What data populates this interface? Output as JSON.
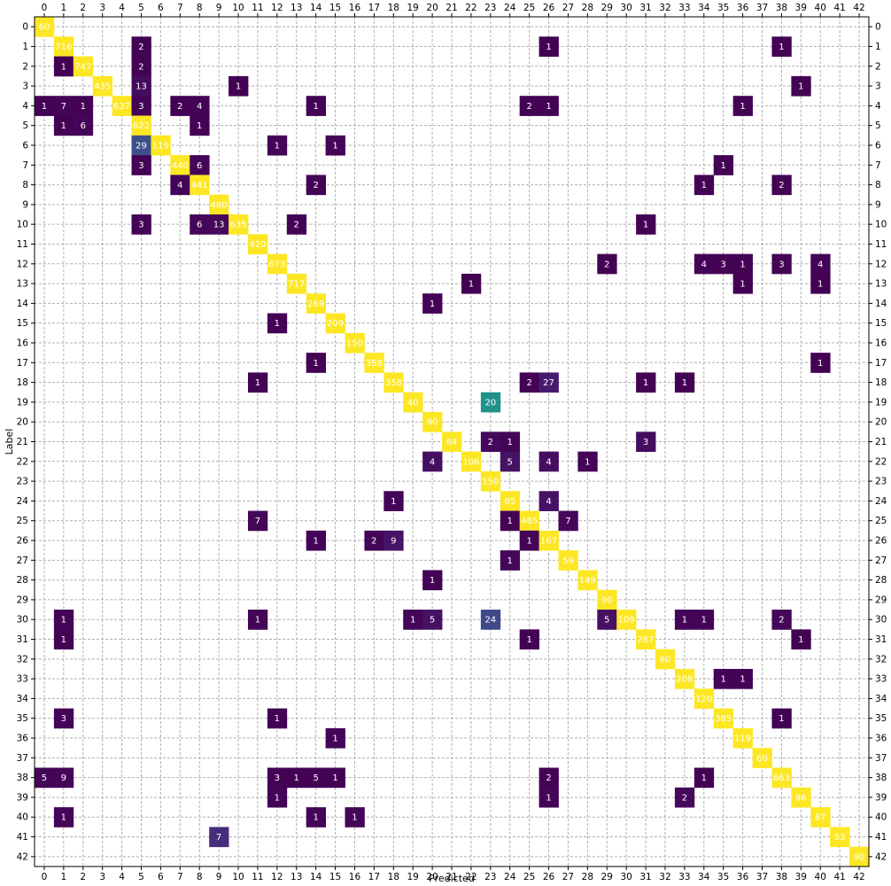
{
  "chart_data": {
    "type": "heatmap",
    "xlabel": "Predicted",
    "ylabel": "Label",
    "x_ticks": [
      0,
      1,
      2,
      3,
      4,
      5,
      6,
      7,
      8,
      9,
      10,
      11,
      12,
      13,
      14,
      15,
      16,
      17,
      18,
      19,
      20,
      21,
      22,
      23,
      24,
      25,
      26,
      27,
      28,
      29,
      30,
      31,
      32,
      33,
      34,
      35,
      36,
      37,
      38,
      39,
      40,
      41,
      42
    ],
    "y_ticks": [
      0,
      1,
      2,
      3,
      4,
      5,
      6,
      7,
      8,
      9,
      10,
      11,
      12,
      13,
      14,
      15,
      16,
      17,
      18,
      19,
      20,
      21,
      22,
      23,
      24,
      25,
      26,
      27,
      28,
      29,
      30,
      31,
      32,
      33,
      34,
      35,
      36,
      37,
      38,
      39,
      40,
      41,
      42
    ],
    "grid": true,
    "colormap": "viridis",
    "cells": [
      {
        "row": 0,
        "col": 0,
        "value": 60
      },
      {
        "row": 1,
        "col": 1,
        "value": 716
      },
      {
        "row": 1,
        "col": 5,
        "value": 2
      },
      {
        "row": 1,
        "col": 26,
        "value": 1
      },
      {
        "row": 1,
        "col": 38,
        "value": 1
      },
      {
        "row": 2,
        "col": 1,
        "value": 1
      },
      {
        "row": 2,
        "col": 2,
        "value": 747
      },
      {
        "row": 2,
        "col": 5,
        "value": 2
      },
      {
        "row": 3,
        "col": 3,
        "value": 435
      },
      {
        "row": 3,
        "col": 5,
        "value": 13
      },
      {
        "row": 3,
        "col": 10,
        "value": 1
      },
      {
        "row": 3,
        "col": 39,
        "value": 1
      },
      {
        "row": 4,
        "col": 0,
        "value": 1
      },
      {
        "row": 4,
        "col": 1,
        "value": 7
      },
      {
        "row": 4,
        "col": 2,
        "value": 1
      },
      {
        "row": 4,
        "col": 4,
        "value": 637
      },
      {
        "row": 4,
        "col": 5,
        "value": 3
      },
      {
        "row": 4,
        "col": 7,
        "value": 2
      },
      {
        "row": 4,
        "col": 8,
        "value": 4
      },
      {
        "row": 4,
        "col": 14,
        "value": 1
      },
      {
        "row": 4,
        "col": 25,
        "value": 2
      },
      {
        "row": 4,
        "col": 26,
        "value": 1
      },
      {
        "row": 4,
        "col": 36,
        "value": 1
      },
      {
        "row": 5,
        "col": 1,
        "value": 1
      },
      {
        "row": 5,
        "col": 2,
        "value": 6
      },
      {
        "row": 5,
        "col": 5,
        "value": 622
      },
      {
        "row": 5,
        "col": 8,
        "value": 1
      },
      {
        "row": 6,
        "col": 5,
        "value": 29
      },
      {
        "row": 6,
        "col": 6,
        "value": 119
      },
      {
        "row": 6,
        "col": 12,
        "value": 1
      },
      {
        "row": 6,
        "col": 15,
        "value": 1
      },
      {
        "row": 7,
        "col": 5,
        "value": 3
      },
      {
        "row": 7,
        "col": 7,
        "value": 440
      },
      {
        "row": 7,
        "col": 8,
        "value": 6
      },
      {
        "row": 7,
        "col": 35,
        "value": 1
      },
      {
        "row": 8,
        "col": 7,
        "value": 4
      },
      {
        "row": 8,
        "col": 8,
        "value": 441
      },
      {
        "row": 8,
        "col": 14,
        "value": 2
      },
      {
        "row": 8,
        "col": 34,
        "value": 1
      },
      {
        "row": 8,
        "col": 38,
        "value": 2
      },
      {
        "row": 9,
        "col": 9,
        "value": 480
      },
      {
        "row": 10,
        "col": 5,
        "value": 3
      },
      {
        "row": 10,
        "col": 8,
        "value": 6
      },
      {
        "row": 10,
        "col": 9,
        "value": 13
      },
      {
        "row": 10,
        "col": 10,
        "value": 635
      },
      {
        "row": 10,
        "col": 13,
        "value": 2
      },
      {
        "row": 10,
        "col": 31,
        "value": 1
      },
      {
        "row": 11,
        "col": 11,
        "value": 420
      },
      {
        "row": 12,
        "col": 12,
        "value": 673
      },
      {
        "row": 12,
        "col": 29,
        "value": 2
      },
      {
        "row": 12,
        "col": 34,
        "value": 4
      },
      {
        "row": 12,
        "col": 35,
        "value": 3
      },
      {
        "row": 12,
        "col": 36,
        "value": 1
      },
      {
        "row": 12,
        "col": 38,
        "value": 3
      },
      {
        "row": 12,
        "col": 40,
        "value": 4
      },
      {
        "row": 13,
        "col": 13,
        "value": 717
      },
      {
        "row": 13,
        "col": 22,
        "value": 1
      },
      {
        "row": 13,
        "col": 36,
        "value": 1
      },
      {
        "row": 13,
        "col": 40,
        "value": 1
      },
      {
        "row": 14,
        "col": 14,
        "value": 269
      },
      {
        "row": 14,
        "col": 20,
        "value": 1
      },
      {
        "row": 15,
        "col": 12,
        "value": 1
      },
      {
        "row": 15,
        "col": 15,
        "value": 209
      },
      {
        "row": 16,
        "col": 16,
        "value": 150
      },
      {
        "row": 17,
        "col": 14,
        "value": 1
      },
      {
        "row": 17,
        "col": 17,
        "value": 358
      },
      {
        "row": 17,
        "col": 40,
        "value": 1
      },
      {
        "row": 18,
        "col": 11,
        "value": 1
      },
      {
        "row": 18,
        "col": 18,
        "value": 358
      },
      {
        "row": 18,
        "col": 25,
        "value": 2
      },
      {
        "row": 18,
        "col": 26,
        "value": 27
      },
      {
        "row": 18,
        "col": 31,
        "value": 1
      },
      {
        "row": 18,
        "col": 33,
        "value": 1
      },
      {
        "row": 19,
        "col": 19,
        "value": 40
      },
      {
        "row": 19,
        "col": 23,
        "value": 20
      },
      {
        "row": 20,
        "col": 20,
        "value": 90
      },
      {
        "row": 21,
        "col": 21,
        "value": 84
      },
      {
        "row": 21,
        "col": 23,
        "value": 2
      },
      {
        "row": 21,
        "col": 24,
        "value": 1
      },
      {
        "row": 21,
        "col": 31,
        "value": 3
      },
      {
        "row": 22,
        "col": 20,
        "value": 4
      },
      {
        "row": 22,
        "col": 22,
        "value": 106
      },
      {
        "row": 22,
        "col": 24,
        "value": 5
      },
      {
        "row": 22,
        "col": 26,
        "value": 4
      },
      {
        "row": 22,
        "col": 28,
        "value": 1
      },
      {
        "row": 23,
        "col": 23,
        "value": 150
      },
      {
        "row": 24,
        "col": 18,
        "value": 1
      },
      {
        "row": 24,
        "col": 24,
        "value": 85
      },
      {
        "row": 24,
        "col": 26,
        "value": 4
      },
      {
        "row": 25,
        "col": 11,
        "value": 7
      },
      {
        "row": 25,
        "col": 24,
        "value": 1
      },
      {
        "row": 25,
        "col": 25,
        "value": 465
      },
      {
        "row": 25,
        "col": 27,
        "value": 7
      },
      {
        "row": 26,
        "col": 14,
        "value": 1
      },
      {
        "row": 26,
        "col": 17,
        "value": 2
      },
      {
        "row": 26,
        "col": 18,
        "value": 9
      },
      {
        "row": 26,
        "col": 25,
        "value": 1
      },
      {
        "row": 26,
        "col": 26,
        "value": 167
      },
      {
        "row": 27,
        "col": 24,
        "value": 1
      },
      {
        "row": 27,
        "col": 27,
        "value": 59
      },
      {
        "row": 28,
        "col": 20,
        "value": 1
      },
      {
        "row": 28,
        "col": 28,
        "value": 149
      },
      {
        "row": 29,
        "col": 29,
        "value": 90
      },
      {
        "row": 30,
        "col": 1,
        "value": 1
      },
      {
        "row": 30,
        "col": 11,
        "value": 1
      },
      {
        "row": 30,
        "col": 19,
        "value": 1
      },
      {
        "row": 30,
        "col": 20,
        "value": 5
      },
      {
        "row": 30,
        "col": 23,
        "value": 24
      },
      {
        "row": 30,
        "col": 29,
        "value": 5
      },
      {
        "row": 30,
        "col": 30,
        "value": 109
      },
      {
        "row": 30,
        "col": 33,
        "value": 1
      },
      {
        "row": 30,
        "col": 34,
        "value": 1
      },
      {
        "row": 30,
        "col": 38,
        "value": 2
      },
      {
        "row": 31,
        "col": 1,
        "value": 1
      },
      {
        "row": 31,
        "col": 25,
        "value": 1
      },
      {
        "row": 31,
        "col": 31,
        "value": 267
      },
      {
        "row": 31,
        "col": 39,
        "value": 1
      },
      {
        "row": 32,
        "col": 32,
        "value": 60
      },
      {
        "row": 33,
        "col": 33,
        "value": 208
      },
      {
        "row": 33,
        "col": 35,
        "value": 1
      },
      {
        "row": 33,
        "col": 36,
        "value": 1
      },
      {
        "row": 34,
        "col": 34,
        "value": 120
      },
      {
        "row": 35,
        "col": 1,
        "value": 3
      },
      {
        "row": 35,
        "col": 12,
        "value": 1
      },
      {
        "row": 35,
        "col": 35,
        "value": 385
      },
      {
        "row": 35,
        "col": 38,
        "value": 1
      },
      {
        "row": 36,
        "col": 15,
        "value": 1
      },
      {
        "row": 36,
        "col": 36,
        "value": 119
      },
      {
        "row": 37,
        "col": 37,
        "value": 60
      },
      {
        "row": 38,
        "col": 0,
        "value": 5
      },
      {
        "row": 38,
        "col": 1,
        "value": 9
      },
      {
        "row": 38,
        "col": 12,
        "value": 3
      },
      {
        "row": 38,
        "col": 13,
        "value": 1
      },
      {
        "row": 38,
        "col": 14,
        "value": 5
      },
      {
        "row": 38,
        "col": 15,
        "value": 1
      },
      {
        "row": 38,
        "col": 26,
        "value": 2
      },
      {
        "row": 38,
        "col": 34,
        "value": 1
      },
      {
        "row": 38,
        "col": 38,
        "value": 663
      },
      {
        "row": 39,
        "col": 12,
        "value": 1
      },
      {
        "row": 39,
        "col": 26,
        "value": 1
      },
      {
        "row": 39,
        "col": 33,
        "value": 2
      },
      {
        "row": 39,
        "col": 39,
        "value": 86
      },
      {
        "row": 40,
        "col": 1,
        "value": 1
      },
      {
        "row": 40,
        "col": 14,
        "value": 1
      },
      {
        "row": 40,
        "col": 16,
        "value": 1
      },
      {
        "row": 40,
        "col": 40,
        "value": 87
      },
      {
        "row": 41,
        "col": 9,
        "value": 7
      },
      {
        "row": 41,
        "col": 41,
        "value": 53
      },
      {
        "row": 42,
        "col": 42,
        "value": 90
      }
    ]
  }
}
